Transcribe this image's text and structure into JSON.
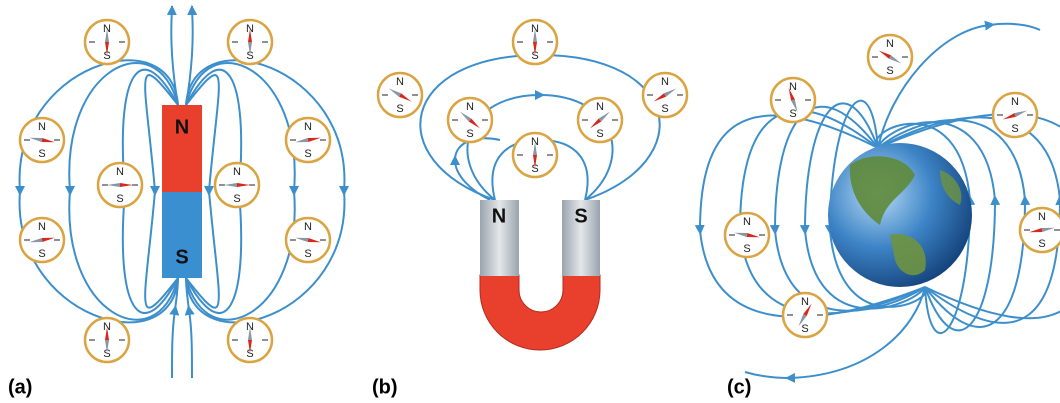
{
  "panels": [
    {
      "label": "(a)",
      "magnet": {
        "north": "N",
        "south": "S"
      }
    },
    {
      "label": "(b)",
      "magnet": {
        "north": "N",
        "south": "S"
      }
    },
    {
      "label": "(c)"
    }
  ],
  "compass": {
    "north": "N",
    "south": "S"
  }
}
